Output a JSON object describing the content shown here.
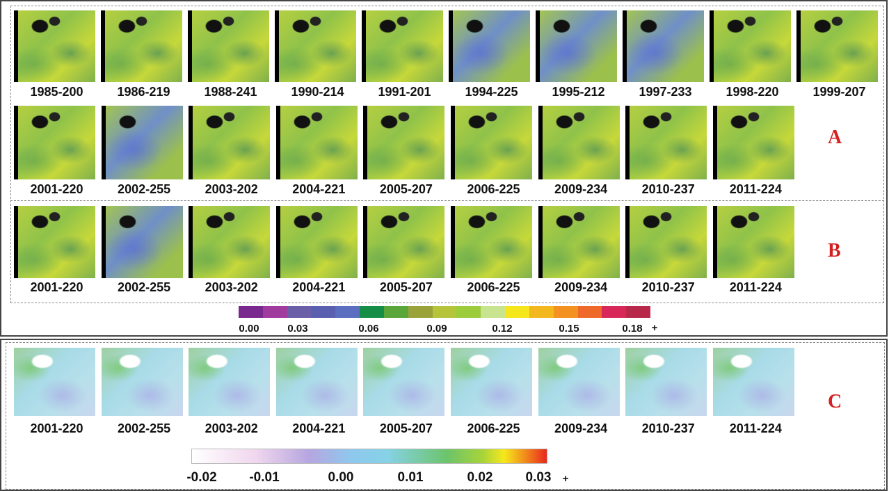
{
  "panel_a": {
    "label": "A",
    "row1": [
      "1985-200",
      "1986-219",
      "1988-241",
      "1990-214",
      "1991-201",
      "1994-225",
      "1995-212",
      "1997-233",
      "1998-220",
      "1999-207"
    ],
    "row2": [
      "2001-220",
      "2002-255",
      "2003-202",
      "2004-221",
      "2005-207",
      "2006-225",
      "2009-234",
      "2010-237",
      "2011-224"
    ]
  },
  "panel_b": {
    "label": "B",
    "images": [
      "2001-220",
      "2002-255",
      "2003-202",
      "2004-221",
      "2005-207",
      "2006-225",
      "2009-234",
      "2010-237",
      "2011-224"
    ]
  },
  "colorbar_ab": {
    "labels": [
      "0.00",
      "0.03",
      "0.06",
      "0.09",
      "0.12",
      "0.15",
      "0.18"
    ],
    "suffix": "+"
  },
  "panel_c": {
    "label": "C",
    "images": [
      "2001-220",
      "2002-255",
      "2003-202",
      "2004-221",
      "2005-207",
      "2006-225",
      "2009-234",
      "2010-237",
      "2011-224"
    ]
  },
  "colorbar_c": {
    "labels": [
      "-0.02",
      "-0.01",
      "0.00",
      "0.01",
      "0.02",
      "0.03"
    ],
    "suffix": "+"
  }
}
